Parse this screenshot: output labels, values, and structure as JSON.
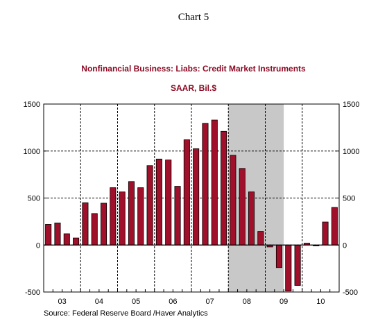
{
  "chart_data": {
    "type": "bar",
    "header": "Chart 5",
    "title": "Nonfinancial Business: Liabs: Credit Market Instruments",
    "subtitle": "SAAR, Bil.$",
    "source": "Source:   Federal Reserve Board /Haver Analytics",
    "year_labels": [
      "03",
      "04",
      "05",
      "06",
      "07",
      "08",
      "09",
      "10"
    ],
    "quarters": [
      "2003Q1",
      "2003Q2",
      "2003Q3",
      "2003Q4",
      "2004Q1",
      "2004Q2",
      "2004Q3",
      "2004Q4",
      "2005Q1",
      "2005Q2",
      "2005Q3",
      "2005Q4",
      "2006Q1",
      "2006Q2",
      "2006Q3",
      "2006Q4",
      "2007Q1",
      "2007Q2",
      "2007Q3",
      "2007Q4",
      "2008Q1",
      "2008Q2",
      "2008Q3",
      "2008Q4",
      "2009Q1",
      "2009Q2",
      "2009Q3",
      "2009Q4",
      "2010Q1",
      "2010Q2",
      "2010Q3",
      "2010Q4"
    ],
    "values": [
      220,
      235,
      120,
      75,
      450,
      335,
      445,
      610,
      565,
      675,
      610,
      845,
      915,
      905,
      625,
      1120,
      1025,
      1295,
      1330,
      1210,
      955,
      815,
      565,
      145,
      -20,
      -240,
      -490,
      -430,
      20,
      -10,
      245,
      400
    ],
    "ylim": [
      -500,
      1500
    ],
    "y_ticks": [
      -500,
      0,
      500,
      1000,
      1500
    ],
    "recession_shading": [
      "2008Q1",
      "2009Q2"
    ],
    "grid": "dashed",
    "bar_color": "#a0102a",
    "shade_color": "#c8c8c8",
    "title_color": "#8b0a23"
  }
}
